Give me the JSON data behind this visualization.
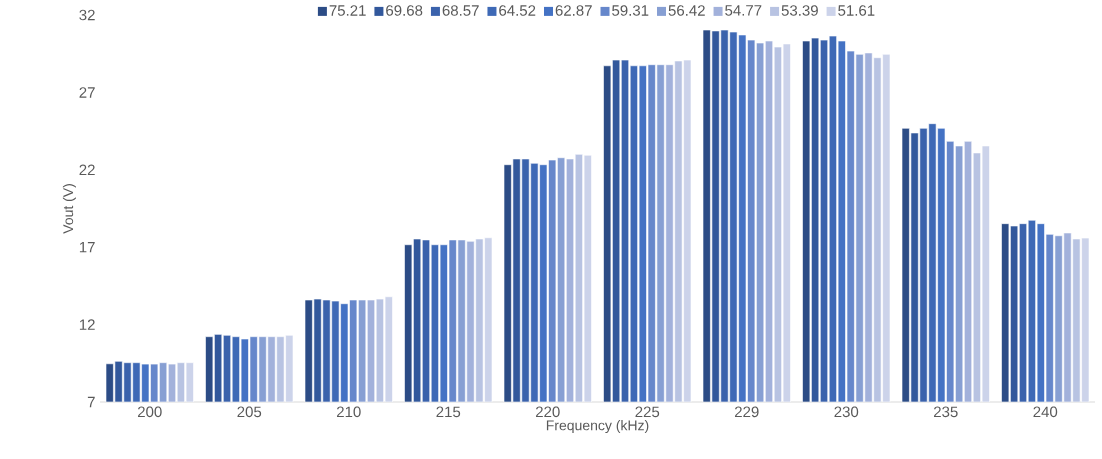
{
  "chart_data": {
    "type": "bar",
    "xlabel": "Frequency (kHz)",
    "ylabel": "Vout (V)",
    "categories": [
      "200",
      "205",
      "210",
      "215",
      "220",
      "225",
      "229",
      "230",
      "235",
      "240"
    ],
    "ylim": [
      7,
      32
    ],
    "yticks": [
      7,
      12,
      17,
      22,
      27,
      32
    ],
    "legend": "top",
    "series": [
      {
        "name": "75.21",
        "color": "#2c4c86",
        "values": [
          9.47,
          11.22,
          13.59,
          17.16,
          22.33,
          28.72,
          31.03,
          30.32,
          24.68,
          18.52
        ]
      },
      {
        "name": "69.68",
        "color": "#32589c",
        "values": [
          9.63,
          11.37,
          13.65,
          17.53,
          22.7,
          29.09,
          30.97,
          30.51,
          24.38,
          18.37
        ]
      },
      {
        "name": "68.57",
        "color": "#3a62ac",
        "values": [
          9.54,
          11.31,
          13.59,
          17.47,
          22.7,
          29.09,
          31.03,
          30.38,
          24.68,
          18.52
        ]
      },
      {
        "name": "64.52",
        "color": "#3e69b6",
        "values": [
          9.54,
          11.22,
          13.52,
          17.16,
          22.42,
          28.72,
          30.9,
          30.64,
          24.98,
          18.74
        ]
      },
      {
        "name": "62.87",
        "color": "#4472c4",
        "values": [
          9.45,
          11.07,
          13.35,
          17.16,
          22.33,
          28.72,
          30.71,
          30.32,
          24.68,
          18.52
        ]
      },
      {
        "name": "59.31",
        "color": "#6687cb",
        "values": [
          9.45,
          11.22,
          13.59,
          17.47,
          22.63,
          28.79,
          30.38,
          29.67,
          23.84,
          17.83
        ]
      },
      {
        "name": "56.42",
        "color": "#879fd3",
        "values": [
          9.54,
          11.22,
          13.59,
          17.47,
          22.78,
          28.79,
          30.19,
          29.46,
          23.54,
          17.74
        ]
      },
      {
        "name": "54.77",
        "color": "#a2b1db",
        "values": [
          9.45,
          11.22,
          13.59,
          17.38,
          22.7,
          28.79,
          30.32,
          29.55,
          23.84,
          17.92
        ]
      },
      {
        "name": "53.39",
        "color": "#b8c3e2",
        "values": [
          9.54,
          11.22,
          13.65,
          17.53,
          23.0,
          29.03,
          29.93,
          29.24,
          23.09,
          17.53
        ]
      },
      {
        "name": "51.61",
        "color": "#ccd3ea",
        "values": [
          9.54,
          11.31,
          13.8,
          17.61,
          22.94,
          29.09,
          30.13,
          29.46,
          23.54,
          17.59
        ]
      }
    ]
  }
}
